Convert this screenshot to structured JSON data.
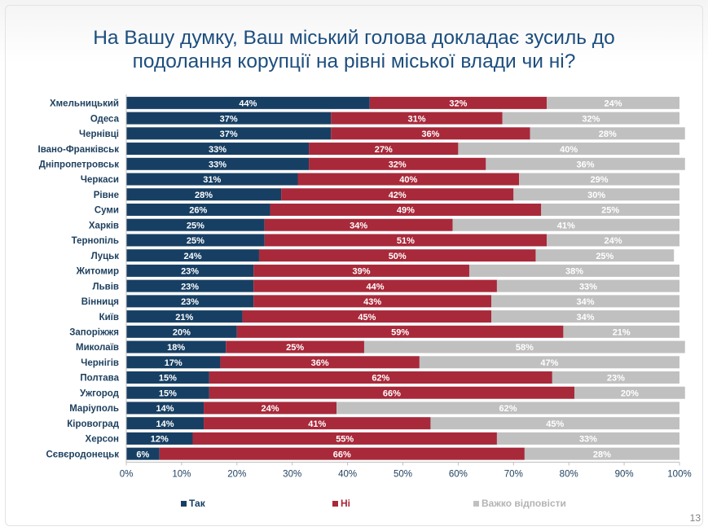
{
  "title": {
    "line1": "На Вашу думку, Ваш міський голова докладає зусиль до",
    "line2": "подолання корупції на рівні міської влади чи ні?"
  },
  "slide_number": "13",
  "colors": {
    "tak": "#173f63",
    "ni": "#a8293a",
    "vazhko": "#c0c0c0",
    "title": "#1d4e7e"
  },
  "chart_data": {
    "type": "bar",
    "orientation": "horizontal",
    "stacked": true,
    "categories": [
      "Хмельницький",
      "Одеса",
      "Чернівці",
      "Івано-Франківськ",
      "Дніпропетровськ",
      "Черкаси",
      "Рівне",
      "Суми",
      "Харків",
      "Тернопіль",
      "Луцьк",
      "Житомир",
      "Львів",
      "Вінниця",
      "Київ",
      "Запоріжжя",
      "Миколаїв",
      "Чернігів",
      "Полтава",
      "Ужгород",
      "Маріуполь",
      "Кіровоград",
      "Херсон",
      "Сєвєродонецьк"
    ],
    "series": [
      {
        "name": "Так",
        "values": [
          44,
          37,
          37,
          33,
          33,
          31,
          28,
          26,
          25,
          25,
          24,
          23,
          23,
          23,
          21,
          20,
          18,
          17,
          15,
          15,
          14,
          14,
          12,
          6
        ]
      },
      {
        "name": "Ні",
        "values": [
          32,
          31,
          36,
          27,
          32,
          40,
          42,
          49,
          34,
          51,
          50,
          39,
          44,
          43,
          45,
          59,
          25,
          36,
          62,
          66,
          24,
          41,
          55,
          66
        ]
      },
      {
        "name": "Важко відповісти",
        "values": [
          24,
          32,
          28,
          40,
          36,
          29,
          30,
          25,
          41,
          24,
          25,
          38,
          33,
          34,
          34,
          21,
          58,
          47,
          23,
          20,
          62,
          45,
          33,
          28
        ]
      }
    ],
    "xticks": [
      "0%",
      "10%",
      "20%",
      "30%",
      "40%",
      "50%",
      "60%",
      "70%",
      "80%",
      "90%",
      "100%"
    ],
    "xlim": [
      0,
      100
    ],
    "grid": false,
    "legend_position": "bottom"
  }
}
